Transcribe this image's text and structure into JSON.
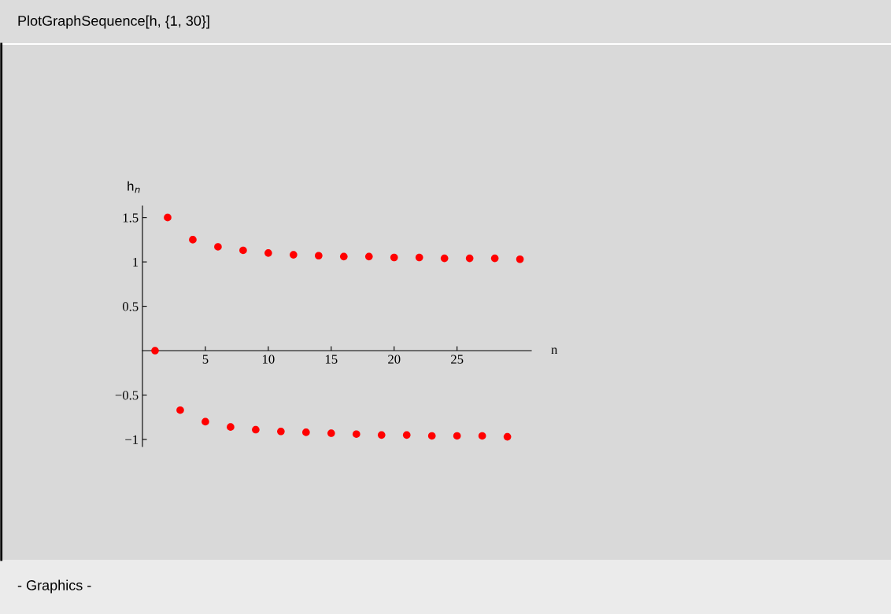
{
  "chart_data": {
    "type": "scatter",
    "title": "PlotGraphSequence[h, {1, 30}]",
    "xlabel": "n",
    "ylabel": "h$_{n}$",
    "annotations": [
      "- Graphics -"
    ],
    "x": [
      1,
      2,
      3,
      4,
      5,
      6,
      7,
      8,
      9,
      10,
      11,
      12,
      13,
      14,
      15,
      16,
      17,
      18,
      19,
      20,
      21,
      22,
      23,
      24,
      25,
      26,
      27,
      28,
      29,
      30
    ],
    "values": [
      0,
      1.5,
      -0.67,
      1.25,
      -0.8,
      1.17,
      -0.86,
      1.13,
      -0.89,
      1.1,
      -0.91,
      1.08,
      -0.92,
      1.07,
      -0.93,
      1.06,
      -0.94,
      1.06,
      -0.95,
      1.05,
      -0.95,
      1.05,
      -0.96,
      1.04,
      -0.96,
      1.04,
      -0.96,
      1.04,
      -0.97,
      1.03
    ],
    "color": "#ff0000",
    "marker": "circle",
    "xlim": [
      0,
      30.9
    ],
    "ylim": [
      -1.08,
      1.63
    ],
    "xticks": [
      5,
      10,
      15,
      20,
      25
    ],
    "yticks": [
      {
        "value": -1,
        "label": "−1"
      },
      {
        "value": -0.5,
        "label": "−0.5"
      },
      0.5,
      1,
      1.5
    ]
  }
}
